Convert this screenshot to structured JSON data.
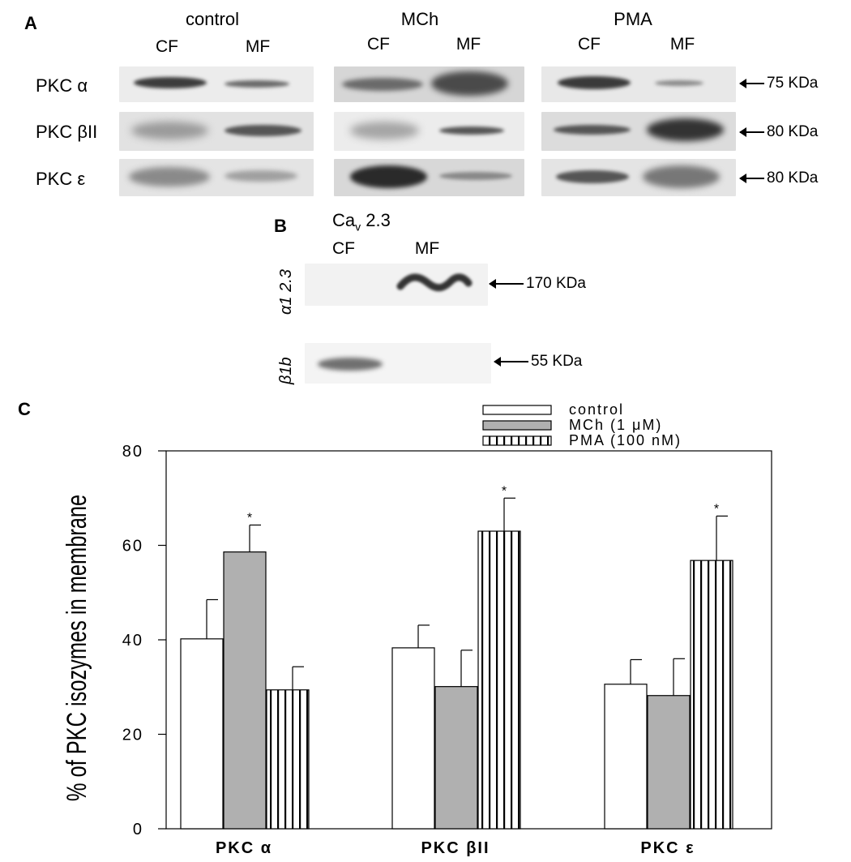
{
  "panel_a": {
    "letter": "A",
    "groups": [
      {
        "title": "control",
        "lanes": [
          "CF",
          "MF"
        ]
      },
      {
        "title": "MCh",
        "lanes": [
          "CF",
          "MF"
        ]
      },
      {
        "title": "PMA",
        "lanes": [
          "CF",
          "MF"
        ]
      }
    ],
    "rows": [
      {
        "label": "PKC α",
        "mw": "75 KDa"
      },
      {
        "label": "PKC βII",
        "mw": "80 KDa"
      },
      {
        "label": "PKC ε",
        "mw": "80 KDa"
      }
    ]
  },
  "panel_b": {
    "letter": "B",
    "title": "Ca",
    "title_sub": "v",
    "title_rest": " 2.3",
    "lanes": [
      "CF",
      "MF"
    ],
    "rows": [
      {
        "label": "α1 2.3",
        "mw": "170 KDa"
      },
      {
        "label": "β1b",
        "mw": "55 KDa"
      }
    ]
  },
  "panel_c": {
    "letter": "C"
  },
  "chart_data": {
    "type": "bar",
    "ylabel": "% of PKC isozymes in membrane",
    "xlabel": "",
    "ylim": [
      0,
      80
    ],
    "yticks": [
      0,
      20,
      40,
      60,
      80
    ],
    "categories": [
      "PKC α",
      "PKC βII",
      "PKC ε"
    ],
    "legend_position": "top-right",
    "series": [
      {
        "name": "control",
        "fill": "white",
        "values": [
          40.2,
          38.3,
          30.6
        ],
        "errors": [
          8.3,
          4.8,
          5.2
        ],
        "significant": [
          false,
          false,
          false
        ]
      },
      {
        "name": "MCh (1 μM)",
        "fill": "gray",
        "values": [
          58.6,
          30.1,
          28.2
        ],
        "errors": [
          5.7,
          7.7,
          7.8
        ],
        "significant": [
          true,
          false,
          false
        ]
      },
      {
        "name": "PMA (100 nM)",
        "fill": "vstripes",
        "values": [
          29.4,
          63.0,
          56.8
        ],
        "errors": [
          4.9,
          7.0,
          9.4
        ],
        "significant": [
          false,
          true,
          true
        ]
      }
    ],
    "significance_marker": "*"
  }
}
